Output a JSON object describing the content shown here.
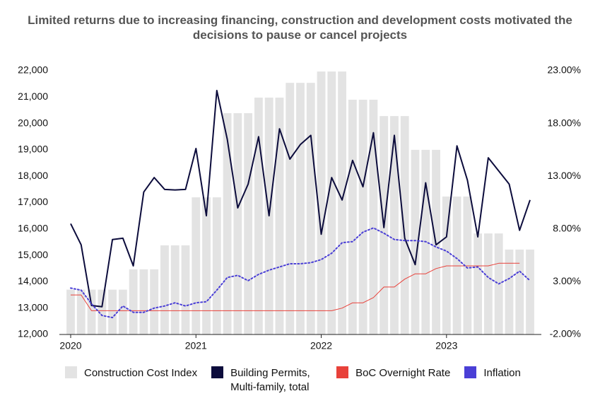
{
  "chart_data": {
    "type": "combo",
    "title": "Limited returns due to increasing financing, construction and development costs motivated the decisions to pause or cancel projects",
    "categories": [
      "2020",
      null,
      null,
      null,
      null,
      null,
      null,
      null,
      null,
      null,
      null,
      null,
      "2021",
      null,
      null,
      null,
      null,
      null,
      null,
      null,
      null,
      null,
      null,
      null,
      "2022",
      null,
      null,
      null,
      null,
      null,
      null,
      null,
      null,
      null,
      null,
      null,
      "2023",
      null,
      null,
      null,
      null,
      null,
      null,
      null,
      null
    ],
    "ylim": [
      12000,
      22000
    ],
    "yticks": [
      {
        "value": 12000,
        "label": "12,000"
      },
      {
        "value": 13000,
        "label": "13,000"
      },
      {
        "value": 14000,
        "label": "14,000"
      },
      {
        "value": 15000,
        "label": "15,000"
      },
      {
        "value": 16000,
        "label": "16,000"
      },
      {
        "value": 17000,
        "label": "17,000"
      },
      {
        "value": 18000,
        "label": "18,000"
      },
      {
        "value": 19000,
        "label": "19,000"
      },
      {
        "value": 20000,
        "label": "20,000"
      },
      {
        "value": 21000,
        "label": "21,000"
      },
      {
        "value": 22000,
        "label": "22,000"
      }
    ],
    "y2lim": [
      -2,
      23
    ],
    "y2ticks": [
      {
        "value": -2,
        "label": "-2.00%"
      },
      {
        "value": 3,
        "label": "3.00%"
      },
      {
        "value": 8,
        "label": "8.00%"
      },
      {
        "value": 13,
        "label": "13.00%"
      },
      {
        "value": 18,
        "label": "18.00%"
      },
      {
        "value": 23,
        "label": "23.00%"
      }
    ],
    "grid": false,
    "legend": "bottom",
    "series": [
      {
        "name": "Construction Cost Index",
        "type": "bar",
        "color": "#e3e3e3",
        "values": [
          13700,
          13700,
          13700,
          13700,
          13700,
          13700,
          14470,
          14470,
          14470,
          15380,
          15380,
          15380,
          17200,
          17200,
          17200,
          20390,
          20390,
          20390,
          20980,
          20980,
          20980,
          21540,
          21540,
          21540,
          21970,
          21970,
          21970,
          20900,
          20900,
          20900,
          20280,
          20280,
          20280,
          19000,
          19000,
          19000,
          17230,
          17230,
          17230,
          15830,
          15830,
          15830,
          15220,
          15220,
          15220
        ]
      },
      {
        "name": "Building Permits, Multi-family, total",
        "type": "line",
        "color": "#0c0c3c",
        "values": [
          16200,
          15400,
          13100,
          13050,
          15600,
          15650,
          14600,
          17400,
          17950,
          17500,
          17480,
          17500,
          19050,
          16500,
          21250,
          19400,
          16800,
          17700,
          19500,
          16500,
          19800,
          18650,
          19200,
          19550,
          15800,
          17950,
          17100,
          18600,
          17600,
          19650,
          16050,
          19550,
          15650,
          14650,
          17750,
          15400,
          15700,
          19150,
          17850,
          15700,
          18700,
          18200,
          17700,
          15950,
          17100
        ]
      },
      {
        "name": "BoC Overnight Rate",
        "type": "line",
        "axis": "y2",
        "color": "#e8413a",
        "values": [
          1.75,
          1.75,
          0.25,
          0.25,
          0.25,
          0.25,
          0.25,
          0.25,
          0.25,
          0.25,
          0.25,
          0.25,
          0.25,
          0.25,
          0.25,
          0.25,
          0.25,
          0.25,
          0.25,
          0.25,
          0.25,
          0.25,
          0.25,
          0.25,
          0.25,
          0.25,
          0.5,
          1.0,
          1.0,
          1.5,
          2.5,
          2.5,
          3.25,
          3.75,
          3.75,
          4.25,
          4.5,
          4.5,
          4.5,
          4.5,
          4.5,
          4.75,
          4.75,
          4.75,
          null
        ]
      },
      {
        "name": "Inflation",
        "type": "line",
        "axis": "y2",
        "color": "#4a3fd6",
        "line_style": "dotted",
        "values": [
          2.4,
          2.2,
          0.9,
          -0.2,
          -0.4,
          0.7,
          0.1,
          0.1,
          0.5,
          0.7,
          1.0,
          0.7,
          1.0,
          1.1,
          2.2,
          3.4,
          3.6,
          3.1,
          3.7,
          4.1,
          4.4,
          4.7,
          4.7,
          4.8,
          5.1,
          5.7,
          6.7,
          6.8,
          7.7,
          8.1,
          7.6,
          7.0,
          6.9,
          6.9,
          6.8,
          6.3,
          5.9,
          5.2,
          4.3,
          4.4,
          3.4,
          2.8,
          3.3,
          4.0,
          3.1
        ]
      }
    ]
  }
}
